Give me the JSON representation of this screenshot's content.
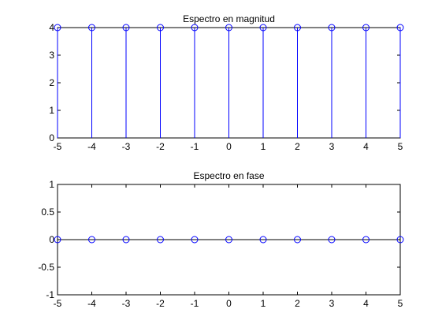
{
  "chart_data": [
    {
      "type": "stem",
      "title": "Espectro en magnitud",
      "xlabel": "",
      "ylabel": "",
      "xlim": [
        -5,
        5
      ],
      "ylim": [
        0,
        4
      ],
      "xticks": [
        "-5",
        "-4",
        "-3",
        "-2",
        "-1",
        "0",
        "1",
        "2",
        "3",
        "4",
        "5"
      ],
      "yticks": [
        "0",
        "1",
        "2",
        "3",
        "4"
      ],
      "x": [
        -5,
        -4,
        -3,
        -2,
        -1,
        0,
        1,
        2,
        3,
        4,
        5
      ],
      "y": [
        4,
        4,
        4,
        4,
        4,
        4,
        4,
        4,
        4,
        4,
        4
      ],
      "color": "#0000ff",
      "marker": "circle",
      "grid": false
    },
    {
      "type": "stem",
      "title": "Espectro en fase",
      "xlabel": "",
      "ylabel": "",
      "xlim": [
        -5,
        5
      ],
      "ylim": [
        -1,
        1
      ],
      "xticks": [
        "-5",
        "-4",
        "-3",
        "-2",
        "-1",
        "0",
        "1",
        "2",
        "3",
        "4",
        "5"
      ],
      "yticks": [
        "-1",
        "-0.5",
        "0",
        "0.5",
        "1"
      ],
      "x": [
        -5,
        -4,
        -3,
        -2,
        -1,
        0,
        1,
        2,
        3,
        4,
        5
      ],
      "y": [
        0,
        0,
        0,
        0,
        0,
        0,
        0,
        0,
        0,
        0,
        0
      ],
      "color": "#0000ff",
      "marker": "circle",
      "grid": false
    }
  ]
}
